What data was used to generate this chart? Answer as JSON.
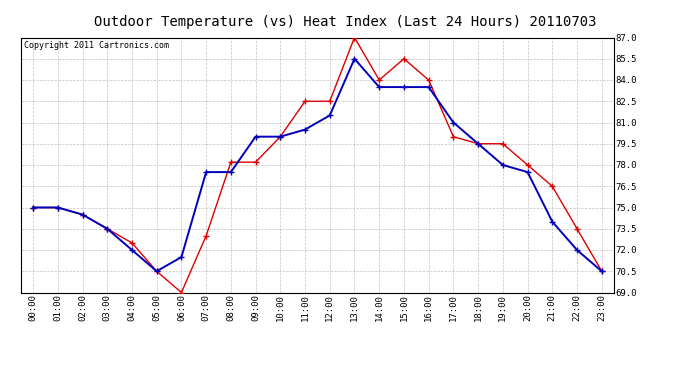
{
  "title": "Outdoor Temperature (vs) Heat Index (Last 24 Hours) 20110703",
  "copyright": "Copyright 2011 Cartronics.com",
  "hours": [
    "00:00",
    "01:00",
    "02:00",
    "03:00",
    "04:00",
    "05:00",
    "06:00",
    "07:00",
    "08:00",
    "09:00",
    "10:00",
    "11:00",
    "12:00",
    "13:00",
    "14:00",
    "15:00",
    "16:00",
    "17:00",
    "18:00",
    "19:00",
    "20:00",
    "21:00",
    "22:00",
    "23:00"
  ],
  "temp": [
    75.0,
    75.0,
    74.5,
    73.5,
    72.5,
    70.5,
    69.0,
    73.0,
    78.2,
    78.2,
    80.0,
    82.5,
    82.5,
    87.0,
    84.0,
    85.5,
    84.0,
    80.0,
    79.5,
    79.5,
    78.0,
    76.5,
    73.5,
    70.5
  ],
  "heat_index": [
    75.0,
    75.0,
    74.5,
    73.5,
    72.0,
    70.5,
    71.5,
    77.5,
    77.5,
    80.0,
    80.0,
    80.5,
    81.5,
    85.5,
    83.5,
    83.5,
    83.5,
    81.0,
    79.5,
    78.0,
    77.5,
    74.0,
    72.0,
    70.5
  ],
  "temp_color": "#dd0000",
  "heat_color": "#0000bb",
  "ylim_min": 69.0,
  "ylim_max": 87.0,
  "yticks": [
    69.0,
    70.5,
    72.0,
    73.5,
    75.0,
    76.5,
    78.0,
    79.5,
    81.0,
    82.5,
    84.0,
    85.5,
    87.0
  ],
  "bg_color": "#ffffff",
  "grid_color": "#999999",
  "title_fontsize": 10,
  "tick_fontsize": 6.5,
  "copyright_fontsize": 6
}
